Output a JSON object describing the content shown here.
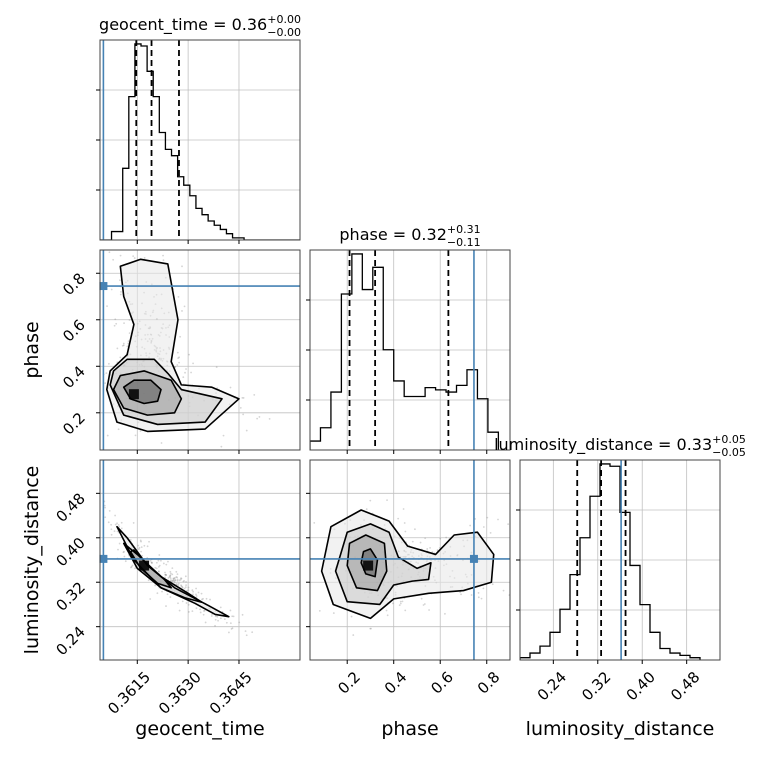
{
  "chart_data": {
    "type": "corner",
    "parameters": [
      "geocent_time",
      "phase",
      "luminosity_distance"
    ],
    "truths": {
      "geocent_time": 0.3605,
      "phase": 0.745,
      "luminosity_distance": 0.362
    },
    "marginals": [
      {
        "parameter": "geocent_time",
        "title": "geocent_time = 0.36",
        "title_sup": "+0.00",
        "title_sub": "−0.00",
        "quantiles": [
          0.36147,
          0.36192,
          0.36273
        ],
        "xlim": [
          0.3604,
          0.3663
        ],
        "bin_edges": [
          0.3604,
          0.36074,
          0.36107,
          0.36125,
          0.36143,
          0.36161,
          0.36179,
          0.36197,
          0.36215,
          0.36233,
          0.36251,
          0.36269,
          0.36287,
          0.36305,
          0.36323,
          0.36341,
          0.36359,
          0.36377,
          0.36395,
          0.36413,
          0.36431,
          0.36465,
          0.3663
        ],
        "heights": [
          0.0,
          0.04,
          0.34,
          0.68,
          0.93,
          0.92,
          0.8,
          0.68,
          0.51,
          0.43,
          0.4,
          0.3,
          0.26,
          0.21,
          0.15,
          0.12,
          0.09,
          0.07,
          0.05,
          0.03,
          0.01,
          0.0
        ]
      },
      {
        "parameter": "phase",
        "title": "phase = 0.32",
        "title_sup": "+0.31",
        "title_sub": "−0.11",
        "quantiles": [
          0.21,
          0.32,
          0.635
        ],
        "xlim": [
          0.04,
          0.9
        ],
        "bin_edges": [
          0.04,
          0.085,
          0.13,
          0.175,
          0.22,
          0.265,
          0.31,
          0.355,
          0.4,
          0.445,
          0.49,
          0.535,
          0.58,
          0.625,
          0.67,
          0.715,
          0.76,
          0.805,
          0.85
        ],
        "heights": [
          0.04,
          0.1,
          0.26,
          0.7,
          0.88,
          0.72,
          0.82,
          0.45,
          0.31,
          0.24,
          0.24,
          0.28,
          0.27,
          0.26,
          0.29,
          0.36,
          0.23,
          0.08
        ]
      },
      {
        "parameter": "luminosity_distance",
        "title": "luminosity_distance = 0.33",
        "title_sup": "+0.05",
        "title_sub": "−0.05",
        "quantiles": [
          0.283,
          0.326,
          0.37
        ],
        "xlim": [
          0.18,
          0.54
        ],
        "bin_edges": [
          0.18,
          0.198,
          0.216,
          0.234,
          0.252,
          0.27,
          0.288,
          0.306,
          0.324,
          0.342,
          0.36,
          0.378,
          0.396,
          0.414,
          0.432,
          0.45,
          0.468,
          0.486,
          0.504
        ],
        "heights": [
          0.01,
          0.03,
          0.06,
          0.12,
          0.22,
          0.37,
          0.53,
          0.71,
          0.85,
          0.84,
          0.64,
          0.41,
          0.24,
          0.12,
          0.05,
          0.03,
          0.02,
          0.01
        ]
      }
    ],
    "joints": [
      {
        "x": "geocent_time",
        "y": "phase",
        "xlim": [
          0.3604,
          0.3663
        ],
        "ylim": [
          0.04,
          0.9
        ],
        "peak": [
          0.3614,
          0.28
        ],
        "contours": [
          [
            [
              0.3611,
              0.31
            ],
            [
              0.3613,
              0.26
            ],
            [
              0.3617,
              0.24
            ],
            [
              0.3621,
              0.25
            ],
            [
              0.3622,
              0.3
            ],
            [
              0.3619,
              0.34
            ],
            [
              0.3614,
              0.34
            ]
          ],
          [
            [
              0.3608,
              0.3
            ],
            [
              0.3611,
              0.22
            ],
            [
              0.3618,
              0.19
            ],
            [
              0.3626,
              0.2
            ],
            [
              0.3628,
              0.26
            ],
            [
              0.3625,
              0.34
            ],
            [
              0.3617,
              0.38
            ],
            [
              0.361,
              0.36
            ]
          ],
          [
            [
              0.3607,
              0.32
            ],
            [
              0.3611,
              0.19
            ],
            [
              0.3621,
              0.15
            ],
            [
              0.3635,
              0.16
            ],
            [
              0.364,
              0.26
            ],
            [
              0.3628,
              0.3
            ],
            [
              0.3624,
              0.37
            ],
            [
              0.362,
              0.43
            ],
            [
              0.3612,
              0.43
            ],
            [
              0.3608,
              0.38
            ]
          ],
          [
            [
              0.3606,
              0.3
            ],
            [
              0.3609,
              0.16
            ],
            [
              0.3618,
              0.12
            ],
            [
              0.3635,
              0.13
            ],
            [
              0.3645,
              0.26
            ],
            [
              0.3637,
              0.31
            ],
            [
              0.3628,
              0.32
            ],
            [
              0.3625,
              0.42
            ],
            [
              0.3627,
              0.6
            ],
            [
              0.3624,
              0.84
            ],
            [
              0.3616,
              0.86
            ],
            [
              0.361,
              0.83
            ],
            [
              0.3611,
              0.7
            ],
            [
              0.3614,
              0.58
            ],
            [
              0.3612,
              0.45
            ],
            [
              0.3607,
              0.38
            ]
          ]
        ]
      },
      {
        "x": "geocent_time",
        "y": "luminosity_distance",
        "xlim": [
          0.3604,
          0.3663
        ],
        "ylim": [
          0.18,
          0.54
        ],
        "peak": [
          0.3617,
          0.35
        ],
        "contours": [
          [
            [
              0.3613,
              0.375
            ],
            [
              0.3616,
              0.345
            ],
            [
              0.3621,
              0.318
            ],
            [
              0.3625,
              0.31
            ],
            [
              0.3623,
              0.325
            ],
            [
              0.3618,
              0.352
            ],
            [
              0.3614,
              0.378
            ]
          ],
          [
            [
              0.3611,
              0.39
            ],
            [
              0.3615,
              0.345
            ],
            [
              0.3622,
              0.31
            ],
            [
              0.3629,
              0.292
            ],
            [
              0.3634,
              0.284
            ],
            [
              0.363,
              0.3
            ],
            [
              0.3622,
              0.33
            ],
            [
              0.3615,
              0.37
            ]
          ],
          [
            [
              0.3609,
              0.42
            ],
            [
              0.3614,
              0.36
            ],
            [
              0.3622,
              0.31
            ],
            [
              0.3632,
              0.282
            ],
            [
              0.3638,
              0.262
            ],
            [
              0.3642,
              0.258
            ],
            [
              0.3636,
              0.278
            ],
            [
              0.3626,
              0.31
            ],
            [
              0.3618,
              0.35
            ],
            [
              0.3612,
              0.4
            ]
          ]
        ]
      },
      {
        "x": "phase",
        "y": "luminosity_distance",
        "xlim": [
          0.04,
          0.9
        ],
        "ylim": [
          0.18,
          0.54
        ],
        "peak": [
          0.29,
          0.35
        ],
        "contours": [
          [
            [
              0.26,
              0.355
            ],
            [
              0.28,
              0.335
            ],
            [
              0.32,
              0.33
            ],
            [
              0.33,
              0.36
            ],
            [
              0.3,
              0.38
            ],
            [
              0.27,
              0.375
            ]
          ],
          [
            [
              0.2,
              0.35
            ],
            [
              0.24,
              0.31
            ],
            [
              0.33,
              0.305
            ],
            [
              0.37,
              0.34
            ],
            [
              0.36,
              0.39
            ],
            [
              0.28,
              0.405
            ],
            [
              0.21,
              0.39
            ]
          ],
          [
            [
              0.15,
              0.34
            ],
            [
              0.2,
              0.285
            ],
            [
              0.34,
              0.28
            ],
            [
              0.4,
              0.315
            ],
            [
              0.48,
              0.322
            ],
            [
              0.55,
              0.325
            ],
            [
              0.56,
              0.355
            ],
            [
              0.5,
              0.345
            ],
            [
              0.42,
              0.365
            ],
            [
              0.38,
              0.41
            ],
            [
              0.3,
              0.425
            ],
            [
              0.2,
              0.41
            ]
          ],
          [
            [
              0.09,
              0.34
            ],
            [
              0.14,
              0.28
            ],
            [
              0.3,
              0.255
            ],
            [
              0.4,
              0.29
            ],
            [
              0.55,
              0.3
            ],
            [
              0.7,
              0.305
            ],
            [
              0.82,
              0.32
            ],
            [
              0.83,
              0.37
            ],
            [
              0.76,
              0.41
            ],
            [
              0.66,
              0.405
            ],
            [
              0.58,
              0.37
            ],
            [
              0.46,
              0.385
            ],
            [
              0.38,
              0.43
            ],
            [
              0.26,
              0.45
            ],
            [
              0.13,
              0.42
            ]
          ]
        ]
      }
    ],
    "axes": {
      "geocent_time": {
        "label": "geocent_time",
        "ticks": [
          0.3615,
          0.363,
          0.3645
        ],
        "tick_labels": [
          "0.3615",
          "0.3630",
          "0.3645"
        ]
      },
      "phase": {
        "label": "phase",
        "ticks": [
          0.2,
          0.4,
          0.6,
          0.8
        ],
        "tick_labels": [
          "0.2",
          "0.4",
          "0.6",
          "0.8"
        ]
      },
      "luminosity_distance": {
        "label": "luminosity_distance",
        "ticks": [
          0.24,
          0.32,
          0.4,
          0.48
        ],
        "tick_labels": [
          "0.24",
          "0.32",
          "0.40",
          "0.48"
        ]
      }
    },
    "grid": true,
    "colors": {
      "truth": "#4682b4",
      "line": "#000000",
      "grid": "#c0c0c0",
      "samples": "#888888"
    }
  }
}
